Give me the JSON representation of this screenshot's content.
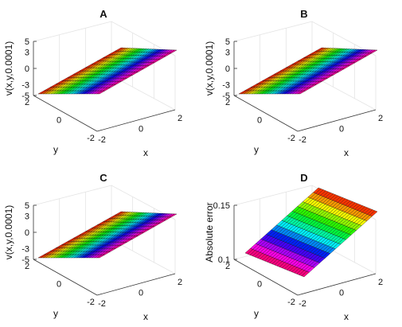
{
  "chart_data": [
    {
      "type": "surface",
      "title": "A",
      "xlabel": "x",
      "ylabel": "y",
      "zlabel": "v(x,y,0.0001)",
      "xlim": [
        -2,
        2
      ],
      "ylim": [
        -2,
        2
      ],
      "zlim": [
        -5,
        5
      ],
      "x_ticks": [
        "-2",
        "0",
        "2"
      ],
      "y_ticks": [
        "-2",
        "0",
        "2"
      ],
      "z_ticks": [
        "-5",
        "0",
        "5"
      ],
      "colormap": "hsv",
      "corners": {
        "x-2_y-2": 3.0,
        "x2_y-2": 3.0,
        "x-2_y2": -3.0,
        "x2_y2": -3.0
      },
      "surface_value_labels": [
        "3",
        "-3"
      ]
    },
    {
      "type": "surface",
      "title": "B",
      "xlabel": "x",
      "ylabel": "y",
      "zlabel": "v(x,y,0.0001)",
      "xlim": [
        -2,
        2
      ],
      "ylim": [
        -2,
        2
      ],
      "zlim": [
        -5,
        5
      ],
      "x_ticks": [
        "-2",
        "0",
        "2"
      ],
      "y_ticks": [
        "-2",
        "0",
        "2"
      ],
      "z_ticks": [
        "-5",
        "0",
        "5"
      ],
      "colormap": "hsv",
      "corners": {
        "x-2_y-2": 3.0,
        "x2_y-2": 3.0,
        "x-2_y2": -3.0,
        "x2_y2": -3.0
      },
      "surface_value_labels": [
        "3",
        "-3"
      ]
    },
    {
      "type": "surface",
      "title": "C",
      "xlabel": "x",
      "ylabel": "y",
      "zlabel": "v(x,y,0.0001)",
      "xlim": [
        -2,
        2
      ],
      "ylim": [
        -2,
        2
      ],
      "zlim": [
        -5,
        5
      ],
      "x_ticks": [
        "-2",
        "0",
        "2"
      ],
      "y_ticks": [
        "-2",
        "0",
        "2"
      ],
      "z_ticks": [
        "-5",
        "0",
        "5"
      ],
      "colormap": "hsv",
      "corners": {
        "x-2_y-2": 3.0,
        "x2_y-2": 3.0,
        "x-2_y2": -3.0,
        "x2_y2": -3.0
      },
      "surface_value_labels": [
        "3",
        "-3"
      ]
    },
    {
      "type": "surface",
      "title": "D",
      "xlabel": "x",
      "ylabel": "y",
      "zlabel": "Absolute error",
      "xlim": [
        -2,
        2
      ],
      "ylim": [
        -2,
        2
      ],
      "zlim": [
        0.1,
        0.15
      ],
      "x_ticks": [
        "-2",
        "0",
        "2"
      ],
      "y_ticks": [
        "-2",
        "0",
        "2"
      ],
      "z_ticks": [
        "0.1",
        "0.15"
      ],
      "colormap": "hsv",
      "corners": {
        "x-2_y-2": 0.15,
        "x2_y-2": 0.15,
        "x-2_y2": 0.1,
        "x2_y2": 0.1
      },
      "surface_value_labels": []
    }
  ]
}
